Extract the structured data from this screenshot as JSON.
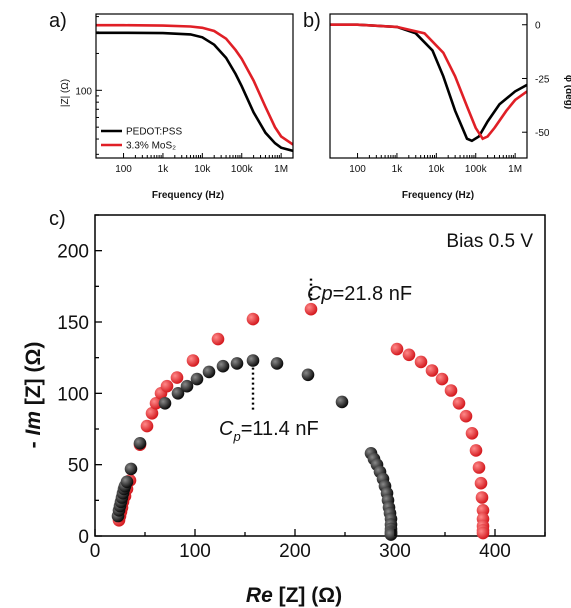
{
  "panel_labels": {
    "a": "a)",
    "b": "b)",
    "c": "c)"
  },
  "chart_data": [
    {
      "type": "line",
      "panel": "a)",
      "xlabel": "Frequency (Hz)",
      "ylabel": "|Z| (Ω)",
      "xscale": "log",
      "yscale": "log",
      "xlim": [
        20,
        2000000
      ],
      "ylim": [
        28,
        420
      ],
      "xtick_labels": [
        "100",
        "1k",
        "10k",
        "100k",
        "1M"
      ],
      "xtick_values": [
        100,
        1000,
        10000,
        100000,
        1000000
      ],
      "ytick_labels": [
        "100"
      ],
      "ytick_values": [
        100
      ],
      "legend": {
        "position": "bottom-left",
        "entries": [
          "PEDOT:PSS",
          "3.3% MoS₂"
        ]
      },
      "series": [
        {
          "name": "PEDOT:PSS",
          "color": "#000000",
          "x": [
            20,
            100,
            1000,
            5000,
            10000,
            20000,
            40000,
            70000,
            100000,
            200000,
            400000,
            700000,
            1000000,
            2000000
          ],
          "y": [
            295,
            295,
            293,
            286,
            271,
            236,
            184,
            136,
            108,
            66,
            45,
            37,
            34,
            32
          ]
        },
        {
          "name": "3.3% MoS₂",
          "color": "#e01f26",
          "x": [
            20,
            100,
            1000,
            5000,
            10000,
            20000,
            40000,
            70000,
            100000,
            200000,
            400000,
            700000,
            1000000,
            2000000
          ],
          "y": [
            340,
            340,
            338,
            332,
            324,
            305,
            264,
            213,
            181,
            120,
            73,
            50,
            42,
            36
          ]
        }
      ]
    },
    {
      "type": "line",
      "panel": "b)",
      "xlabel": "Frequency (Hz)",
      "ylabel": "φ (deg)",
      "xscale": "log",
      "xlim": [
        20,
        2000000
      ],
      "ylim": [
        -62,
        5
      ],
      "xtick_labels": [
        "100",
        "1k",
        "10k",
        "100k",
        "1M"
      ],
      "xtick_values": [
        100,
        1000,
        10000,
        100000,
        1000000
      ],
      "ytick_labels": [
        "0",
        "-25",
        "-50"
      ],
      "ytick_values": [
        0,
        -25,
        -50
      ],
      "series": [
        {
          "name": "PEDOT:PSS",
          "color": "#000000",
          "x": [
            20,
            100,
            1000,
            3000,
            8000,
            15000,
            30000,
            60000,
            80000,
            120000,
            200000,
            400000,
            1000000,
            2000000
          ],
          "y": [
            0,
            0,
            -1,
            -4,
            -12,
            -24,
            -40,
            -53,
            -54,
            -52,
            -45,
            -37,
            -31,
            -28
          ]
        },
        {
          "name": "3.3% MoS₂",
          "color": "#e01f26",
          "x": [
            20,
            100,
            1000,
            5000,
            15000,
            30000,
            60000,
            100000,
            150000,
            200000,
            300000,
            600000,
            1000000,
            2000000
          ],
          "y": [
            0,
            0,
            -1,
            -4,
            -13,
            -24,
            -38,
            -48,
            -53,
            -52,
            -48,
            -40,
            -35,
            -31
          ]
        }
      ]
    },
    {
      "type": "scatter",
      "panel": "c)",
      "xlabel": "Re [Z] (Ω)",
      "ylabel": "- Im [Z] (Ω)",
      "xlim": [
        0,
        450
      ],
      "ylim": [
        0,
        225
      ],
      "xtick_labels": [
        "0",
        "100",
        "200",
        "300",
        "400"
      ],
      "xtick_values": [
        0,
        100,
        200,
        300,
        400
      ],
      "ytick_labels": [
        "0",
        "50",
        "100",
        "150",
        "200"
      ],
      "ytick_values": [
        0,
        50,
        100,
        150,
        200
      ],
      "annotations": {
        "bias": "Bias 0.5 V",
        "cp_red": "=21.8 nF",
        "cp_black": "=11.4 nF",
        "cp_symbol": "C",
        "cp_subscript": "p"
      },
      "series": [
        {
          "name": "3.3% MoS₂",
          "color": "#e01f26",
          "x": [
            24,
            25,
            26,
            27,
            28,
            30,
            32,
            35,
            45,
            52,
            57,
            61,
            66,
            72,
            82,
            98,
            123,
            158,
            216,
            302,
            314,
            326,
            337,
            347,
            356,
            364,
            371,
            377,
            381,
            384,
            386,
            387,
            388,
            388,
            388,
            388,
            388
          ],
          "y": [
            11,
            14,
            17,
            20,
            24,
            28,
            33,
            39,
            64,
            77,
            86,
            93,
            100,
            105,
            111,
            123,
            138,
            152,
            159,
            131,
            127,
            122,
            116,
            110,
            102,
            93,
            84,
            72,
            60,
            48,
            37,
            27,
            18,
            12,
            7,
            4,
            2
          ]
        },
        {
          "name": "PEDOT:PSS",
          "color": "#000000",
          "x": [
            23,
            24,
            25,
            26,
            27,
            28,
            29,
            30,
            32,
            36,
            45,
            70,
            83,
            92,
            102,
            114,
            128,
            142,
            158,
            182,
            213,
            247,
            276,
            279,
            282,
            285,
            288,
            290,
            292,
            293,
            294,
            295,
            296,
            296,
            296,
            296,
            296,
            296
          ],
          "y": [
            14,
            18,
            21,
            24,
            27,
            30,
            33,
            35,
            38,
            47,
            65,
            93,
            100,
            105,
            110,
            115,
            119,
            121,
            123,
            121,
            113,
            94,
            58,
            54,
            50,
            45,
            40,
            35,
            30,
            25,
            20,
            16,
            12,
            8,
            5,
            3,
            2,
            1
          ]
        }
      ]
    }
  ]
}
